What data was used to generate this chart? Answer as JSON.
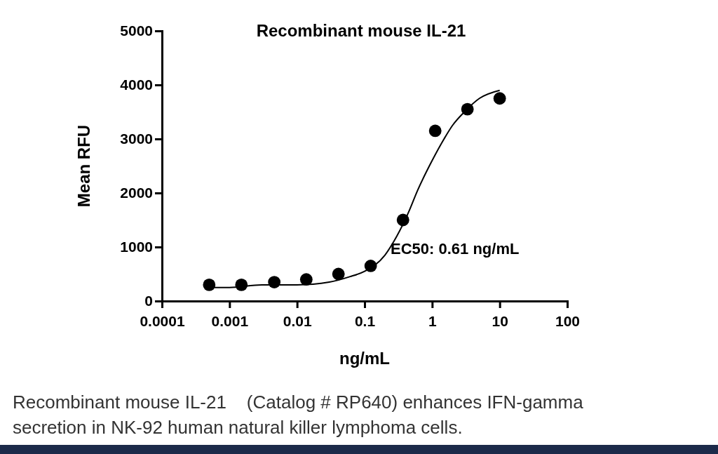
{
  "chart_data": {
    "type": "scatter",
    "title": "Recombinant mouse IL-21",
    "xlabel": "ng/mL",
    "ylabel": "Mean RFU",
    "log": "x",
    "xlim": [
      0.0001,
      100
    ],
    "xticks": [
      0.0001,
      0.001,
      0.01,
      0.1,
      1,
      10,
      100
    ],
    "ylim": [
      0,
      5000
    ],
    "yticks": [
      0,
      1000,
      2000,
      3000,
      4000,
      5000
    ],
    "grid": false,
    "marker": "circle",
    "series": [
      {
        "color": "#000000",
        "x": [
          0.0005,
          0.0015,
          0.0046,
          0.0137,
          0.041,
          0.123,
          0.37,
          1.11,
          3.33,
          10
        ],
        "values": [
          300,
          300,
          350,
          400,
          500,
          650,
          1500,
          3150,
          3550,
          3750
        ]
      },
      {
        "type": "line",
        "color": "#000000",
        "marker": "none",
        "line_style": "solid",
        "x": [
          0.0005,
          0.001,
          0.003,
          0.01,
          0.03,
          0.06,
          0.1,
          0.2,
          0.3,
          0.45,
          0.61,
          1,
          1.5,
          2,
          3,
          5,
          10
        ],
        "values": [
          250,
          250,
          300,
          300,
          350,
          450,
          550,
          850,
          1200,
          1650,
          2050,
          2600,
          3000,
          3250,
          3500,
          3750,
          3900
        ]
      }
    ],
    "annotations": [
      "EC50: 0.61 ng/mL",
      "Recombinant mouse IL-21    (Catalog # RP640) enhances IFN-gamma secretion in NK-92 human natural killer lymphoma cells."
    ]
  }
}
